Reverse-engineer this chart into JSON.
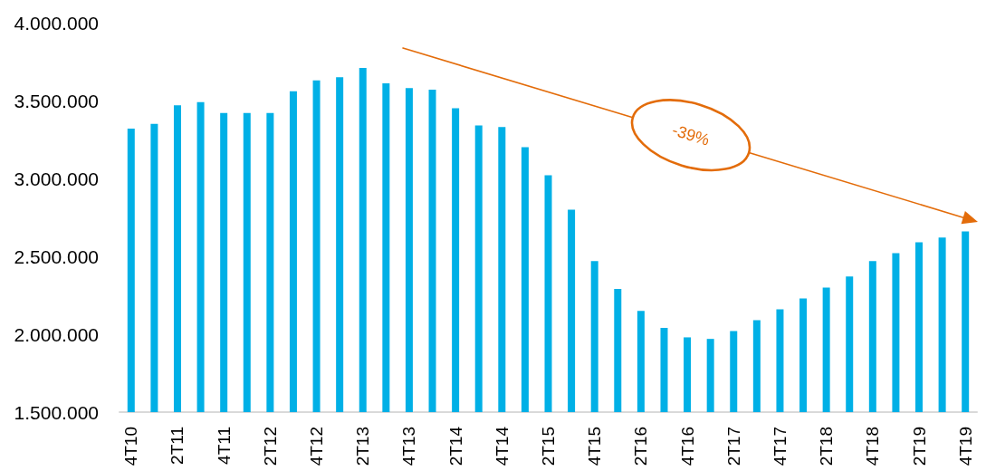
{
  "chart_data": {
    "type": "bar",
    "categories": [
      "4T10",
      null,
      "2T11",
      null,
      "4T11",
      null,
      "2T12",
      null,
      "4T12",
      null,
      "2T13",
      null,
      "4T13",
      null,
      "2T14",
      null,
      "4T14",
      null,
      "2T15",
      null,
      "4T15",
      null,
      "2T16",
      null,
      "4T16",
      null,
      "2T17",
      null,
      "4T17",
      null,
      "2T18",
      null,
      "4T18",
      null,
      "2T19",
      null,
      "4T19"
    ],
    "values": [
      3320000,
      3350000,
      3470000,
      3490000,
      3420000,
      3420000,
      3420000,
      3560000,
      3630000,
      3650000,
      3710000,
      3610000,
      3580000,
      3570000,
      3450000,
      3340000,
      3330000,
      3200000,
      3020000,
      2800000,
      2470000,
      2290000,
      2150000,
      2040000,
      1980000,
      1970000,
      2020000,
      2090000,
      2160000,
      2230000,
      2300000,
      2370000,
      2470000,
      2520000,
      2590000,
      2620000,
      2660000
    ],
    "color": "#00b0e6",
    "ylim": [
      1500000,
      4000000
    ],
    "yticks": [
      {
        "value": 1500000,
        "label": "1.500.000"
      },
      {
        "value": 2000000,
        "label": "2.000.000"
      },
      {
        "value": 2500000,
        "label": "2.500.000"
      },
      {
        "value": 3000000,
        "label": "3.000.000"
      },
      {
        "value": 3500000,
        "label": "3.500.000"
      },
      {
        "value": 4000000,
        "label": "4.000.000"
      }
    ],
    "grid": false,
    "annotations": [
      "-39%"
    ]
  }
}
